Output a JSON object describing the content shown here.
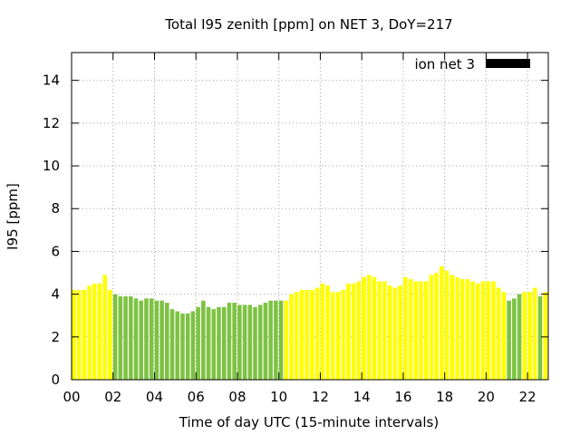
{
  "chart_data": {
    "type": "bar",
    "title": "Total I95 zenith [ppm] on NET 3, DoY=217",
    "xlabel": "Time of day UTC (15-minute intervals)",
    "ylabel": "I95 [ppm]",
    "xlim": [
      0,
      23
    ],
    "ylim": [
      0,
      15.3
    ],
    "x_ticks": [
      0,
      2,
      4,
      6,
      8,
      10,
      12,
      14,
      16,
      18,
      20,
      22
    ],
    "x_tick_labels": [
      "00",
      "02",
      "04",
      "06",
      "08",
      "10",
      "12",
      "14",
      "16",
      "18",
      "20",
      "22"
    ],
    "y_ticks": [
      0,
      2,
      4,
      6,
      8,
      10,
      12,
      14
    ],
    "y_tick_labels": [
      "0",
      "2",
      "4",
      "6",
      "8",
      "10",
      "12",
      "14"
    ],
    "grid": true,
    "legend": {
      "label": "ion net 3",
      "placement": "top-right",
      "color": "#000000"
    },
    "colors": {
      "yellow": "#ffff00",
      "green": "#7dc242"
    },
    "values": [
      4.2,
      4.2,
      4.2,
      4.4,
      4.5,
      4.5,
      4.9,
      4.2,
      4.0,
      3.9,
      3.9,
      3.9,
      3.8,
      3.7,
      3.8,
      3.8,
      3.7,
      3.7,
      3.6,
      3.3,
      3.2,
      3.1,
      3.1,
      3.2,
      3.4,
      3.7,
      3.4,
      3.3,
      3.4,
      3.4,
      3.6,
      3.6,
      3.5,
      3.5,
      3.5,
      3.4,
      3.5,
      3.6,
      3.7,
      3.7,
      3.7,
      3.7,
      4.0,
      4.1,
      4.2,
      4.2,
      4.2,
      4.3,
      4.5,
      4.4,
      4.1,
      4.1,
      4.2,
      4.5,
      4.5,
      4.6,
      4.8,
      4.9,
      4.8,
      4.6,
      4.6,
      4.4,
      4.3,
      4.4,
      4.8,
      4.7,
      4.6,
      4.6,
      4.6,
      4.9,
      5.0,
      5.3,
      5.1,
      4.9,
      4.8,
      4.7,
      4.7,
      4.6,
      4.5,
      4.6,
      4.6,
      4.6,
      4.3,
      4.1,
      3.7,
      3.8,
      4.0,
      4.1,
      4.1,
      4.3,
      3.9,
      4.1
    ],
    "bar_colors": [
      "yellow",
      "yellow",
      "yellow",
      "yellow",
      "yellow",
      "yellow",
      "yellow",
      "yellow",
      "green",
      "green",
      "green",
      "green",
      "green",
      "green",
      "green",
      "green",
      "green",
      "green",
      "green",
      "green",
      "green",
      "green",
      "green",
      "green",
      "green",
      "green",
      "green",
      "green",
      "green",
      "green",
      "green",
      "green",
      "green",
      "green",
      "green",
      "green",
      "green",
      "green",
      "green",
      "green",
      "green",
      "yellow",
      "yellow",
      "yellow",
      "yellow",
      "yellow",
      "yellow",
      "yellow",
      "yellow",
      "yellow",
      "yellow",
      "yellow",
      "yellow",
      "yellow",
      "yellow",
      "yellow",
      "yellow",
      "yellow",
      "yellow",
      "yellow",
      "yellow",
      "yellow",
      "yellow",
      "yellow",
      "yellow",
      "yellow",
      "yellow",
      "yellow",
      "yellow",
      "yellow",
      "yellow",
      "yellow",
      "yellow",
      "yellow",
      "yellow",
      "yellow",
      "yellow",
      "yellow",
      "yellow",
      "yellow",
      "yellow",
      "yellow",
      "yellow",
      "yellow",
      "green",
      "green",
      "green",
      "yellow",
      "yellow",
      "yellow",
      "green",
      "yellow"
    ]
  }
}
